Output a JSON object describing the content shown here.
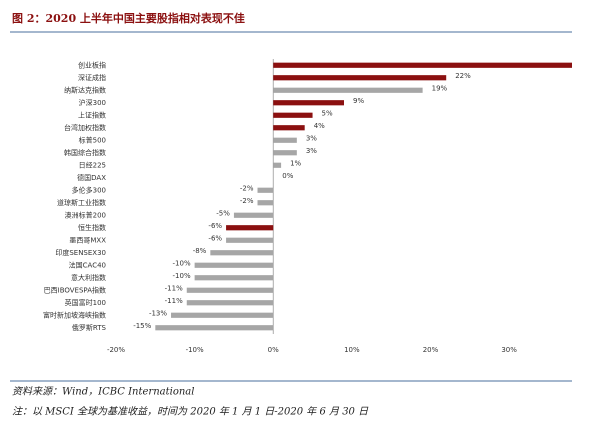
{
  "header": {
    "title": "图 2：2020 上半年中国主要股指相对表现不佳"
  },
  "chart_data": {
    "type": "hbar",
    "categories": [
      "创业板指",
      "深证成指",
      "纳斯达克指数",
      "沪深300",
      "上证指数",
      "台湾加权指数",
      "标普500",
      "韩国综合指数",
      "日经225",
      "德国DAX",
      "多伦多300",
      "道琼斯工业指数",
      "澳洲标普200",
      "恒生指数",
      "墨西哥MXX",
      "印度SENSEX30",
      "法国CAC40",
      "意大利指数",
      "巴西IBOVESPA指数",
      "英国富时100",
      "富时新加坡海峡指数",
      "俄罗斯RTS"
    ],
    "values": [
      38,
      22,
      19,
      9,
      5,
      4,
      3,
      3,
      1,
      0,
      -2,
      -2,
      -5,
      -6,
      -6,
      -8,
      -10,
      -10,
      -11,
      -11,
      -13,
      -15
    ],
    "value_labels": [
      null,
      "22%",
      "19%",
      "9%",
      "5%",
      "4%",
      "3%",
      "3%",
      "1%",
      "0%",
      "-2%",
      "-2%",
      "-5%",
      "-6%",
      "-6%",
      "-8%",
      "-10%",
      "-10%",
      "-11%",
      "-11%",
      "-13%",
      "-15%"
    ],
    "colors": [
      "#8b1010",
      "#8b1010",
      "#a6a6a6",
      "#8b1010",
      "#8b1010",
      "#8b1010",
      "#a6a6a6",
      "#a6a6a6",
      "#a6a6a6",
      "#a6a6a6",
      "#a6a6a6",
      "#a6a6a6",
      "#a6a6a6",
      "#8b1010",
      "#a6a6a6",
      "#a6a6a6",
      "#a6a6a6",
      "#a6a6a6",
      "#a6a6a6",
      "#a6a6a6",
      "#a6a6a6",
      "#a6a6a6"
    ],
    "xlim": [
      -20,
      38
    ],
    "xticks": [
      {
        "value": -20,
        "label": "-20%"
      },
      {
        "value": -10,
        "label": "-10%"
      },
      {
        "value": 0,
        "label": "0%"
      },
      {
        "value": 10,
        "label": "10%"
      },
      {
        "value": 20,
        "label": "20%"
      },
      {
        "value": 30,
        "label": "30%"
      }
    ]
  },
  "footer": {
    "source": "资料来源：Wind，ICBC International",
    "note": "注：以 MSCI 全球为基准收益，时间为 2020 年 1 月 1 日-2020 年 6 月 30 日"
  }
}
